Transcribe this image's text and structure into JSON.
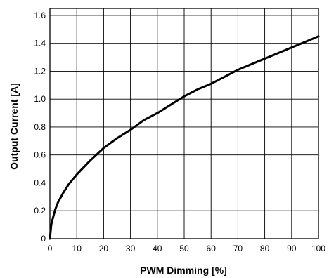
{
  "chart_data": {
    "type": "line",
    "xlabel": "PWM Dimming [%]",
    "ylabel": "Output Current [A]",
    "xlim": [
      0,
      100
    ],
    "ylim": [
      0,
      1.65
    ],
    "xticks": [
      0,
      10,
      20,
      30,
      40,
      50,
      60,
      70,
      80,
      90,
      100
    ],
    "yticks": [
      0,
      0.2,
      0.4,
      0.6,
      0.8,
      1.0,
      1.2,
      1.4,
      1.6
    ],
    "xtick_labels": [
      "0",
      "10",
      "20",
      "30",
      "40",
      "50",
      "60",
      "70",
      "80",
      "90",
      "100"
    ],
    "ytick_labels": [
      "0",
      "0.2",
      "0.4",
      "0.6",
      "0.8",
      "1.0",
      "1.2",
      "1.4",
      "1.6"
    ],
    "grid": true,
    "series": [
      {
        "color": "#000000",
        "x": [
          0,
          0.5,
          1,
          2,
          3,
          5,
          7,
          10,
          15,
          20,
          25,
          30,
          35,
          40,
          45,
          50,
          55,
          60,
          65,
          70,
          75,
          80,
          85,
          90,
          95,
          100
        ],
        "y": [
          0,
          0.1,
          0.14,
          0.21,
          0.26,
          0.33,
          0.39,
          0.46,
          0.56,
          0.65,
          0.72,
          0.78,
          0.85,
          0.9,
          0.96,
          1.02,
          1.07,
          1.11,
          1.16,
          1.21,
          1.25,
          1.29,
          1.33,
          1.37,
          1.41,
          1.45
        ]
      }
    ]
  }
}
